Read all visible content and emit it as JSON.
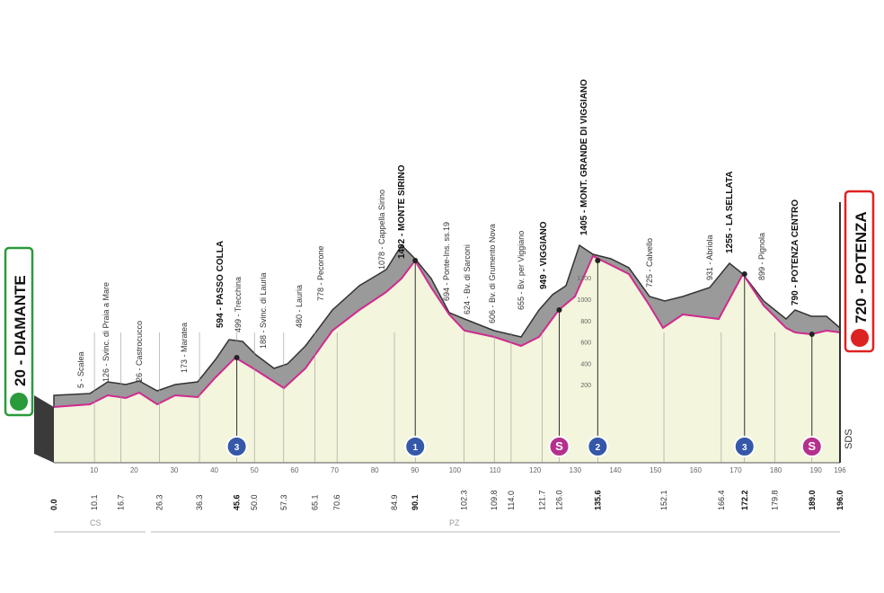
{
  "start": {
    "label": "20 - DIAMANTE"
  },
  "finish": {
    "label": "720 - POTENZA"
  },
  "waypoints": [
    "5 - Scalea",
    "126 - Svinc. di Praia a Mare",
    "26 - Castrocucco",
    "173 - Maratea",
    "594 - PASSO COLLA",
    "499 - Trecchina",
    "188 - Svinc. di Lauria",
    "480 - Lauria",
    "778 - Pecorone",
    "1078 - Cappella Sirino",
    "1402 - MONTE SIRINO",
    "694 - Ponte-Ins. ss.19",
    "624 - Bv. di Sarconi",
    "606 - Bv. di Grumento Nova",
    "655 - Bv. per Viggiano",
    "949 - VIGGIANO",
    "1405 - MONT. GRANDE DI VIGGIANO",
    "725 - Calvello",
    "931 - Abriola",
    "1255 - LA SELLATA",
    "899 - Pignola",
    "790 - POTENZA CENTRO"
  ],
  "km": [
    "0.0",
    "10.1",
    "16.7",
    "26.3",
    "36.3",
    "45.6",
    "50.0",
    "57.3",
    "65.1",
    "70.6",
    "84.9",
    "90.1",
    "102.3",
    "109.8",
    "114.0",
    "121.7",
    "126.0",
    "135.6",
    "152.1",
    "166.4",
    "172.2",
    "179.8",
    "189.0",
    "196.0"
  ],
  "axis_ticks": [
    "10",
    "20",
    "30",
    "40",
    "50",
    "60",
    "70",
    "80",
    "90",
    "100",
    "110",
    "120",
    "130",
    "140",
    "150",
    "160",
    "170",
    "180",
    "190",
    "196"
  ],
  "altitude_ticks": [
    "200",
    "400",
    "600",
    "800",
    "1000",
    "1200"
  ],
  "regions": [
    "CS",
    "PZ"
  ],
  "markers": [
    "3",
    "1",
    "S",
    "2",
    "3",
    "S"
  ],
  "brand": "SDS"
}
